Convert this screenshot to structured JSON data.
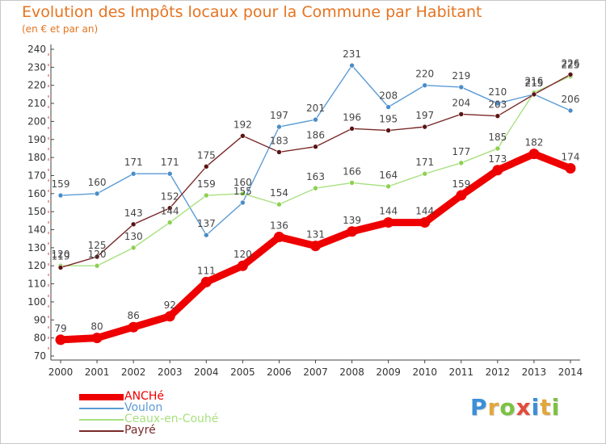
{
  "header": {
    "title": "Evolution des Impôts locaux pour la Commune par Habitant",
    "subtitle": "(en € et par an)"
  },
  "logo": {
    "letters": [
      "P",
      "r",
      "o",
      "x",
      "i",
      "t",
      "i"
    ],
    "colors": [
      "#3a8fd8",
      "#e2a73b",
      "#7cc242",
      "#e24b3b",
      "#3a8fd8",
      "#e2a73b",
      "#7cc242"
    ]
  },
  "chart_data": {
    "type": "line",
    "title": "Evolution des Impôts locaux pour la Commune par Habitant",
    "subtitle": "(en € et par an)",
    "x": [
      "2000",
      "2001",
      "2002",
      "2003",
      "2004",
      "2005",
      "2006",
      "2007",
      "2008",
      "2009",
      "2010",
      "2011",
      "2012",
      "2013",
      "2014"
    ],
    "y_ticks": [
      70,
      80,
      90,
      100,
      110,
      120,
      130,
      140,
      150,
      160,
      170,
      180,
      190,
      200,
      210,
      220,
      230,
      240
    ],
    "ylim": [
      70,
      240
    ],
    "grid": false,
    "legend_position": "bottom-left",
    "series": [
      {
        "name": "ANCHé",
        "values": [
          79,
          80,
          86,
          92,
          111,
          120,
          136,
          131,
          139,
          144,
          144,
          159,
          173,
          182,
          174
        ],
        "color": "#ee0000",
        "marker": "#ee0000"
      },
      {
        "name": "Voulon",
        "values": [
          159,
          160,
          171,
          171,
          137,
          155,
          197,
          201,
          231,
          208,
          220,
          219,
          210,
          215,
          206
        ],
        "color": "#5b9bd5",
        "marker": "#4a8cc8"
      },
      {
        "name": "Ceaux-en-Couhé",
        "values": [
          120,
          120,
          130,
          144,
          159,
          160,
          154,
          163,
          166,
          164,
          171,
          177,
          185,
          216,
          225
        ],
        "color": "#a8e080",
        "marker": "#8cd050"
      },
      {
        "name": "Payré",
        "values": [
          119,
          125,
          143,
          152,
          175,
          192,
          183,
          186,
          196,
          195,
          197,
          204,
          203,
          215,
          226
        ],
        "color": "#7a2a2a",
        "marker": "#5a1414"
      }
    ]
  }
}
